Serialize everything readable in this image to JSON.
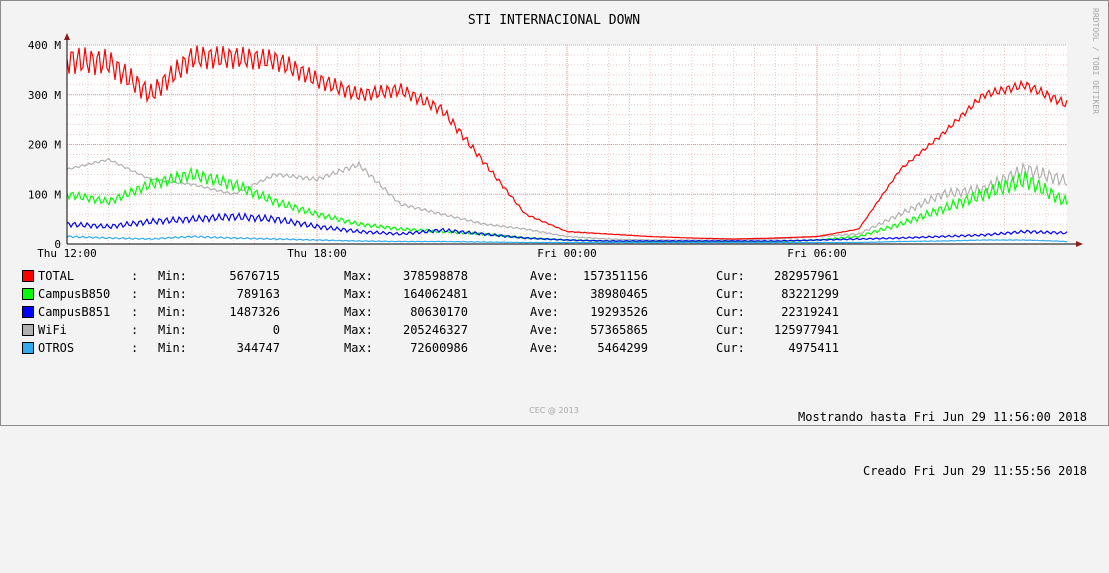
{
  "chart_data": {
    "type": "line",
    "title": "STI INTERNACIONAL DOWN",
    "side_text": "RRDTOOL / TOBI OETIKER",
    "credit": "CEC @ 2013",
    "ylim": [
      0,
      400000000
    ],
    "yticks": [
      {
        "v": 0,
        "label": "0"
      },
      {
        "v": 100000000,
        "label": "100 M"
      },
      {
        "v": 200000000,
        "label": "200 M"
      },
      {
        "v": 300000000,
        "label": "300 M"
      },
      {
        "v": 400000000,
        "label": "400 M"
      }
    ],
    "xlim": [
      0,
      24
    ],
    "xticks": [
      {
        "v": 0,
        "label": "Thu 12:00"
      },
      {
        "v": 6,
        "label": "Thu 18:00"
      },
      {
        "v": 12,
        "label": "Fri 00:00"
      },
      {
        "v": 18,
        "label": "Fri 06:00"
      }
    ],
    "x": [
      0,
      1,
      2,
      3,
      4,
      5,
      6,
      7,
      8,
      9,
      10,
      11,
      12,
      13,
      14,
      15,
      16,
      17,
      18,
      19,
      20,
      21,
      22,
      23,
      24
    ],
    "series": [
      {
        "name": "TOTAL",
        "color": "#ff0000",
        "values": [
          370,
          365,
          300,
          375,
          375,
          370,
          330,
          300,
          310,
          270,
          165,
          60,
          25,
          20,
          15,
          12,
          10,
          12,
          15,
          30,
          150,
          220,
          300,
          320,
          280
        ],
        "stats": {
          "min": "5676715",
          "max": "378598878",
          "ave": "157351156",
          "cur": "282957961"
        }
      },
      {
        "name": "CampusB850",
        "color": "#00ff00",
        "values": [
          100,
          85,
          120,
          140,
          120,
          85,
          60,
          40,
          30,
          25,
          20,
          12,
          8,
          6,
          5,
          5,
          5,
          5,
          8,
          15,
          40,
          70,
          100,
          130,
          83
        ],
        "stats": {
          "min": "789163",
          "max": "164062481",
          "ave": "38980465",
          "cur": "83221299"
        }
      },
      {
        "name": "CampusB851",
        "color": "#0000ff",
        "values": [
          40,
          35,
          45,
          50,
          55,
          50,
          35,
          25,
          20,
          28,
          20,
          12,
          8,
          6,
          6,
          6,
          6,
          6,
          8,
          10,
          12,
          15,
          18,
          25,
          22
        ],
        "stats": {
          "min": "1487326",
          "max": "80630170",
          "ave": "19293526",
          "cur": "22319241"
        }
      },
      {
        "name": "WiFi",
        "color": "#b0b0b0",
        "values": [
          150,
          170,
          130,
          120,
          100,
          140,
          130,
          160,
          80,
          60,
          40,
          30,
          15,
          10,
          8,
          8,
          8,
          10,
          15,
          20,
          60,
          100,
          110,
          150,
          126
        ],
        "stats": {
          "min": "0",
          "max": "205246327",
          "ave": "57365865",
          "cur": "125977941"
        }
      },
      {
        "name": "OTROS",
        "color": "#33aaee",
        "values": [
          15,
          12,
          10,
          15,
          12,
          10,
          8,
          6,
          5,
          5,
          4,
          3,
          3,
          3,
          3,
          3,
          3,
          3,
          3,
          3,
          5,
          6,
          8,
          8,
          5
        ],
        "stats": {
          "min": "344747",
          "max": "72600986",
          "ave": "5464299",
          "cur": "4975411"
        }
      }
    ]
  },
  "legend": {
    "rows": [
      {
        "name": "TOTAL",
        "sep": ":",
        "min_label": "Min:",
        "min": "5676715",
        "max_label": "Max:",
        "max": "378598878",
        "ave_label": "Ave:",
        "ave": "157351156",
        "cur_label": "Cur:",
        "cur": "282957961"
      },
      {
        "name": "CampusB850",
        "sep": ":",
        "min_label": "Min:",
        "min": "789163",
        "max_label": "Max:",
        "max": "164062481",
        "ave_label": "Ave:",
        "ave": "38980465",
        "cur_label": "Cur:",
        "cur": "83221299"
      },
      {
        "name": "CampusB851",
        "sep": ":",
        "min_label": "Min:",
        "min": "1487326",
        "max_label": "Max:",
        "max": "80630170",
        "ave_label": "Ave:",
        "ave": "19293526",
        "cur_label": "Cur:",
        "cur": "22319241"
      },
      {
        "name": "WiFi",
        "sep": ":",
        "min_label": "Min:",
        "min": "0",
        "max_label": "Max:",
        "max": "205246327",
        "ave_label": "Ave:",
        "ave": "57365865",
        "cur_label": "Cur:",
        "cur": "125977941"
      },
      {
        "name": "OTROS",
        "sep": ":",
        "min_label": "Min:",
        "min": "344747",
        "max_label": "Max:",
        "max": "72600986",
        "ave_label": "Ave:",
        "ave": "5464299",
        "cur_label": "Cur:",
        "cur": "4975411"
      }
    ]
  },
  "footer": {
    "shown_until": "Mostrando hasta Fri Jun 29 11:56:00 2018",
    "created": "Creado Fri Jun 29 11:55:56 2018"
  }
}
